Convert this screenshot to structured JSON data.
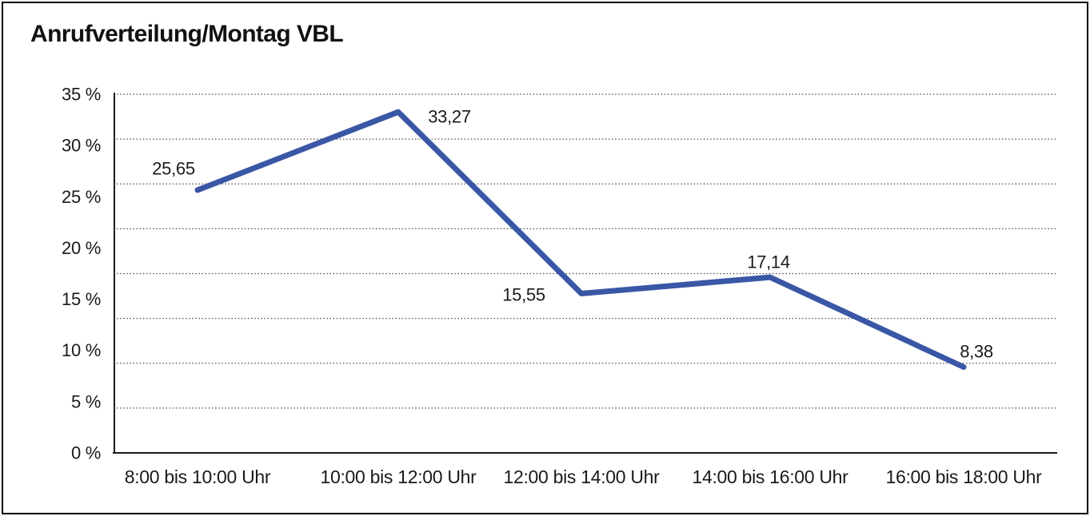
{
  "frame": {
    "background": "#ffffff",
    "border_color": "#000000"
  },
  "chart_data": {
    "type": "line",
    "title": "Anrufverteilung/Montag VBL",
    "categories": [
      "8:00 bis 10:00 Uhr",
      "10:00 bis 12:00 Uhr",
      "12:00 bis 14:00 Uhr",
      "14:00 bis 16:00 Uhr",
      "16:00 bis 18:00 Uhr"
    ],
    "series": [
      {
        "name": "Anrufverteilung Montag VBL",
        "values": [
          25.65,
          33.27,
          15.55,
          17.14,
          8.38
        ],
        "value_labels": [
          "25,65",
          "33,27",
          "15,55",
          "17,14",
          "8,38"
        ]
      }
    ],
    "xlabel": "",
    "ylabel": "",
    "ylim": [
      0,
      35
    ],
    "y_tick_step": 5,
    "y_tick_labels": [
      "0 %",
      "5 %",
      "10 %",
      "15 %",
      "20 %",
      "25 %",
      "30 %",
      "35 %"
    ],
    "grid": {
      "horizontal": true,
      "style": "dotted",
      "divisions": 8,
      "vertical": false
    },
    "legend": "none",
    "markers": "none",
    "colors": {
      "line": "#3A57A6",
      "text": "#1a1a1a",
      "axis": "#1a1a1a",
      "grid": "#4a4a4a"
    }
  }
}
